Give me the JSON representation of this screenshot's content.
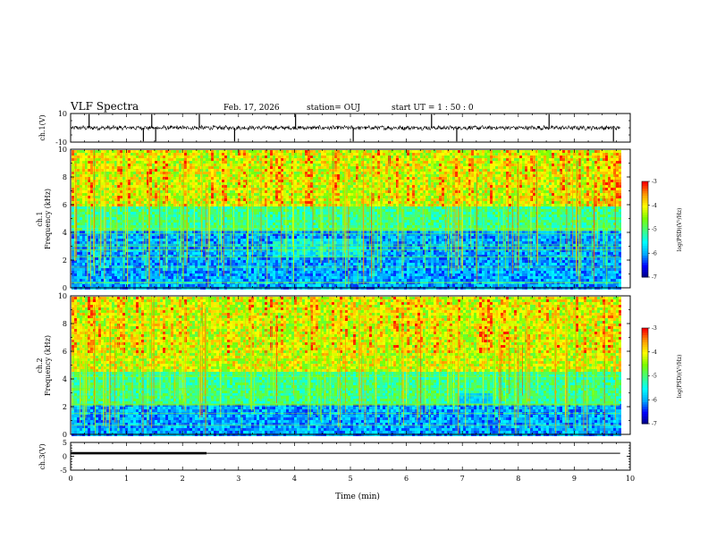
{
  "header": {
    "title": "VLF Spectra",
    "date": "Feb. 17, 2026",
    "station": "station= OUJ",
    "start": "start  UT =   1 : 50 : 0"
  },
  "chart_data": [
    {
      "type": "line",
      "name": "ch1-waveform",
      "ylabel": "ch.1(V)",
      "ylim": [
        -10,
        10
      ],
      "ytick_labels": [
        "10",
        "-10"
      ],
      "xlim": [
        0,
        10
      ],
      "baseline": 0,
      "spike_times": [
        0.33,
        1.3,
        1.45,
        1.52,
        2.3,
        2.93,
        4.02,
        5.05,
        6.45,
        6.9,
        8.55,
        9.7
      ],
      "signal_end": 9.82
    },
    {
      "type": "heatmap",
      "name": "ch1-spectrogram",
      "ylabel": "ch.1\nFrequency  (kHz)",
      "ylabel_lines": [
        "ch.1",
        "Frequency  (kHz)"
      ],
      "xlim": [
        0,
        10
      ],
      "ylim": [
        0,
        10
      ],
      "ytick_labels": [
        "0",
        "2",
        "4",
        "6",
        "8",
        "10"
      ],
      "signal_end": 9.82,
      "bands_khz": [
        [
          0,
          4.2,
          "quiet"
        ],
        [
          4.2,
          6.0,
          "mid"
        ],
        [
          6.0,
          10,
          "active"
        ]
      ],
      "colorbar": {
        "label": "log(PSD)(V²/Hz)",
        "range": [
          -7,
          -3
        ],
        "tick_labels": [
          "-3",
          "-4",
          "-5",
          "-6",
          "-7"
        ]
      }
    },
    {
      "type": "heatmap",
      "name": "ch2-spectrogram",
      "ylabel": "ch.2\nFrequency  (kHz)",
      "ylabel_lines": [
        "ch.2",
        "Frequency  (kHz)"
      ],
      "xlim": [
        0,
        10
      ],
      "ylim": [
        0,
        10
      ],
      "ytick_labels": [
        "0",
        "2",
        "4",
        "6",
        "8",
        "10"
      ],
      "signal_end": 9.82,
      "bands_khz": [
        [
          0,
          2.2,
          "quiet"
        ],
        [
          2.2,
          4.6,
          "mid"
        ],
        [
          4.6,
          10,
          "active"
        ]
      ],
      "colorbar": {
        "label": "log(PSD)(V²/Hz)",
        "range": [
          -7,
          -3
        ],
        "tick_labels": [
          "-3",
          "-4",
          "-5",
          "-6",
          "-7"
        ]
      }
    },
    {
      "type": "line",
      "name": "ch3-level",
      "ylabel": "ch.3(V)",
      "ylim": [
        -5,
        5
      ],
      "ytick_labels": [
        "5",
        "0",
        "-5"
      ],
      "xlim": [
        0,
        10
      ],
      "level_segments": [
        {
          "x0": 0,
          "x1": 2.43,
          "y": 1.1,
          "weight": "thick"
        },
        {
          "x0": 2.43,
          "x1": 9.82,
          "y": 1.1,
          "weight": "thin"
        }
      ],
      "xlabel": "Time  (min)",
      "xtick_labels": [
        "0",
        "1",
        "2",
        "3",
        "4",
        "5",
        "6",
        "7",
        "8",
        "9",
        "10"
      ]
    }
  ],
  "colors": {
    "colormap": [
      "#00007a",
      "#0000ff",
      "#00a8ff",
      "#00ffff",
      "#40ff80",
      "#7cff00",
      "#ffff00",
      "#ff9800",
      "#ff0000"
    ],
    "trace": "#000000"
  }
}
